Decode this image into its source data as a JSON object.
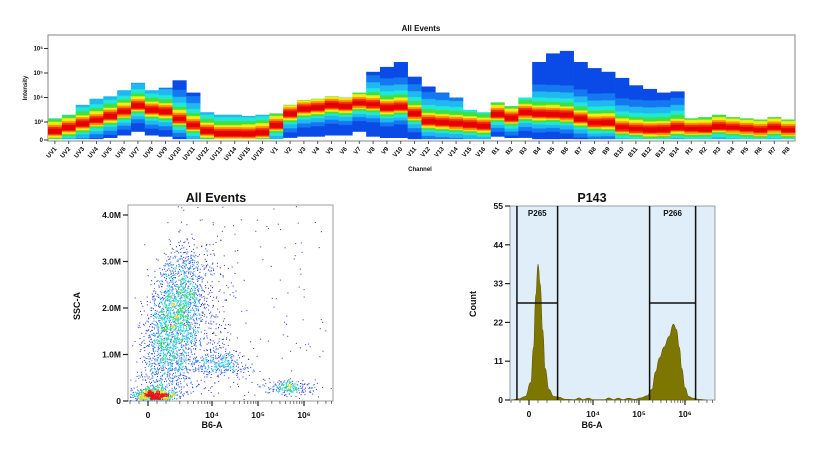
{
  "chart_data": [
    {
      "type": "heatmap",
      "title": "All Events",
      "xlabel": "Channel",
      "ylabel": "Intensity",
      "y_scale": "log",
      "y_ticks": [
        {
          "label": "0",
          "log10": 2.265
        },
        {
          "label": "10³",
          "log10": 3
        },
        {
          "label": "10⁴",
          "log10": 4
        },
        {
          "label": "10⁵",
          "log10": 5
        },
        {
          "label": "10⁶",
          "log10": 6
        }
      ],
      "value_units": "log10 intensity (top = max, peak = densest, bottom = min)",
      "channels": [
        {
          "name": "UV1",
          "top": 3.15,
          "peak": 2.6,
          "bottom": 2.3
        },
        {
          "name": "UV2",
          "top": 3.3,
          "peak": 2.75,
          "bottom": 2.3
        },
        {
          "name": "UV3",
          "top": 3.7,
          "peak": 2.9,
          "bottom": 2.3
        },
        {
          "name": "UV4",
          "top": 3.95,
          "peak": 3.05,
          "bottom": 2.3
        },
        {
          "name": "UV5",
          "top": 4.05,
          "peak": 3.2,
          "bottom": 2.35
        },
        {
          "name": "UV6",
          "top": 4.3,
          "peak": 3.4,
          "bottom": 2.45
        },
        {
          "name": "UV7",
          "top": 4.6,
          "peak": 3.65,
          "bottom": 2.6
        },
        {
          "name": "UV8",
          "top": 4.3,
          "peak": 3.45,
          "bottom": 2.45
        },
        {
          "name": "UV9",
          "top": 4.4,
          "peak": 3.4,
          "bottom": 2.4
        },
        {
          "name": "UV10",
          "top": 4.7,
          "peak": 3.1,
          "bottom": 2.3
        },
        {
          "name": "UV11",
          "top": 4.2,
          "peak": 2.85,
          "bottom": 2.3
        },
        {
          "name": "UV12",
          "top": 3.4,
          "peak": 2.6,
          "bottom": 2.3
        },
        {
          "name": "UV13",
          "top": 3.3,
          "peak": 2.5,
          "bottom": 2.3
        },
        {
          "name": "UV14",
          "top": 3.3,
          "peak": 2.5,
          "bottom": 2.3
        },
        {
          "name": "UV15",
          "top": 3.25,
          "peak": 2.5,
          "bottom": 2.3
        },
        {
          "name": "UV16",
          "top": 3.3,
          "peak": 2.55,
          "bottom": 2.3
        },
        {
          "name": "V1",
          "top": 3.35,
          "peak": 2.85,
          "bottom": 2.3
        },
        {
          "name": "V2",
          "top": 3.7,
          "peak": 3.3,
          "bottom": 2.35
        },
        {
          "name": "V3",
          "top": 3.9,
          "peak": 3.5,
          "bottom": 2.4
        },
        {
          "name": "V4",
          "top": 3.95,
          "peak": 3.55,
          "bottom": 2.4
        },
        {
          "name": "V5",
          "top": 4.05,
          "peak": 3.65,
          "bottom": 2.45
        },
        {
          "name": "V6",
          "top": 4.0,
          "peak": 3.6,
          "bottom": 2.45
        },
        {
          "name": "V7",
          "top": 4.2,
          "peak": 3.75,
          "bottom": 2.6
        },
        {
          "name": "V8",
          "top": 5.05,
          "peak": 3.7,
          "bottom": 2.4
        },
        {
          "name": "V9",
          "top": 5.25,
          "peak": 3.55,
          "bottom": 2.35
        },
        {
          "name": "V10",
          "top": 5.45,
          "peak": 3.6,
          "bottom": 2.35
        },
        {
          "name": "V11",
          "top": 4.85,
          "peak": 3.3,
          "bottom": 2.3
        },
        {
          "name": "V12",
          "top": 4.45,
          "peak": 3.0,
          "bottom": 2.3
        },
        {
          "name": "V13",
          "top": 4.2,
          "peak": 2.95,
          "bottom": 2.3
        },
        {
          "name": "V14",
          "top": 4.0,
          "peak": 2.9,
          "bottom": 2.3
        },
        {
          "name": "V15",
          "top": 3.5,
          "peak": 2.85,
          "bottom": 2.3
        },
        {
          "name": "V16",
          "top": 3.4,
          "peak": 2.8,
          "bottom": 2.3
        },
        {
          "name": "B1",
          "top": 3.8,
          "peak": 3.3,
          "bottom": 2.4
        },
        {
          "name": "B2",
          "top": 3.65,
          "peak": 3.15,
          "bottom": 2.35
        },
        {
          "name": "B3",
          "top": 4.0,
          "peak": 3.35,
          "bottom": 2.35
        },
        {
          "name": "B4",
          "top": 5.45,
          "peak": 3.3,
          "bottom": 2.3
        },
        {
          "name": "B5",
          "top": 5.8,
          "peak": 3.3,
          "bottom": 2.3
        },
        {
          "name": "B6",
          "top": 5.9,
          "peak": 3.25,
          "bottom": 2.3
        },
        {
          "name": "B7",
          "top": 5.45,
          "peak": 3.1,
          "bottom": 2.3
        },
        {
          "name": "B8",
          "top": 5.2,
          "peak": 2.95,
          "bottom": 2.3
        },
        {
          "name": "B9",
          "top": 5.05,
          "peak": 2.95,
          "bottom": 2.3
        },
        {
          "name": "B10",
          "top": 4.8,
          "peak": 2.75,
          "bottom": 2.3
        },
        {
          "name": "B11",
          "top": 4.5,
          "peak": 2.7,
          "bottom": 2.3
        },
        {
          "name": "B12",
          "top": 4.35,
          "peak": 2.65,
          "bottom": 2.3
        },
        {
          "name": "B13",
          "top": 4.2,
          "peak": 2.65,
          "bottom": 2.3
        },
        {
          "name": "B14",
          "top": 4.25,
          "peak": 2.75,
          "bottom": 2.3
        },
        {
          "name": "R1",
          "top": 3.15,
          "peak": 2.7,
          "bottom": 2.3
        },
        {
          "name": "R2",
          "top": 3.2,
          "peak": 2.7,
          "bottom": 2.3
        },
        {
          "name": "R3",
          "top": 3.3,
          "peak": 2.8,
          "bottom": 2.3
        },
        {
          "name": "R4",
          "top": 3.2,
          "peak": 2.75,
          "bottom": 2.3
        },
        {
          "name": "R5",
          "top": 3.15,
          "peak": 2.7,
          "bottom": 2.3
        },
        {
          "name": "R6",
          "top": 3.1,
          "peak": 2.65,
          "bottom": 2.3
        },
        {
          "name": "R7",
          "top": 3.2,
          "peak": 2.75,
          "bottom": 2.3
        },
        {
          "name": "R8",
          "top": 3.1,
          "peak": 2.65,
          "bottom": 2.3
        }
      ]
    },
    {
      "type": "scatter",
      "title": "All Events",
      "xlabel": "B6-A",
      "ylabel": "SSC-A",
      "x_scale": "biexponential",
      "x_ticks": [
        {
          "label": "0",
          "value": 0
        },
        {
          "label": "10⁴",
          "value": 10000
        },
        {
          "label": "10⁵",
          "value": 100000
        },
        {
          "label": "10⁶",
          "value": 1000000
        }
      ],
      "y_ticks": [
        {
          "label": "0",
          "value": 0
        },
        {
          "label": "1.0M",
          "value": 1000000
        },
        {
          "label": "2.0M",
          "value": 2000000
        },
        {
          "label": "3.0M",
          "value": 3000000
        },
        {
          "label": "4.0M",
          "value": 4000000
        }
      ],
      "ylim": [
        0,
        4200000
      ],
      "coloring": "density (blue → cyan → green → yellow → red)",
      "populations": [
        {
          "kind": "blob",
          "x": 300,
          "y": 120000,
          "x_spread_decades": 0.22,
          "y_spread": 80000,
          "n": 900
        },
        {
          "kind": "streak",
          "x_from": 700,
          "y_from": 300000,
          "x_to": 2600,
          "y_to": 3000000,
          "x_spread_decades": 0.28,
          "y_spread": 220000,
          "n": 2300
        },
        {
          "kind": "blob",
          "x": 15000,
          "y": 800000,
          "x_spread_decades": 0.32,
          "y_spread": 150000,
          "n": 330
        },
        {
          "kind": "blob",
          "x": 500000,
          "y": 300000,
          "x_spread_decades": 0.25,
          "y_spread": 80000,
          "n": 240
        },
        {
          "kind": "blob",
          "x": 4000,
          "y": 1800000,
          "x_spread_decades": 0.45,
          "y_spread": 900000,
          "n": 500
        },
        {
          "kind": "uniform",
          "x_from": 1000,
          "x_to": 3000000,
          "y_from": 0,
          "y_to": 4200000,
          "n": 150
        }
      ]
    },
    {
      "type": "area",
      "title": "P143",
      "xlabel": "B6-A",
      "ylabel": "Count",
      "x_scale": "biexponential",
      "ylim": [
        0,
        55
      ],
      "y_ticks": [
        0,
        11,
        22,
        33,
        44,
        55
      ],
      "x_ticks": [
        {
          "label": "0",
          "value": 0
        },
        {
          "label": "10⁴",
          "value": 10000
        },
        {
          "label": "10⁵",
          "value": 100000
        },
        {
          "label": "10⁶",
          "value": 1000000
        }
      ],
      "fill_color": "#7d7600",
      "background_color": "#dfeef9",
      "points": [
        [
          -1500,
          0
        ],
        [
          -600,
          0.3
        ],
        [
          -200,
          1
        ],
        [
          100,
          5
        ],
        [
          250,
          15
        ],
        [
          380,
          30
        ],
        [
          500,
          38.5
        ],
        [
          620,
          33
        ],
        [
          760,
          20
        ],
        [
          900,
          9
        ],
        [
          1100,
          3
        ],
        [
          1400,
          1
        ],
        [
          1800,
          0.8
        ],
        [
          2500,
          0.2
        ],
        [
          4000,
          0.1
        ],
        [
          5000,
          0.6
        ],
        [
          6000,
          0.1
        ],
        [
          8000,
          0.5
        ],
        [
          10000,
          0.1
        ],
        [
          18000,
          0.1
        ],
        [
          22000,
          0.6
        ],
        [
          28000,
          0.1
        ],
        [
          35000,
          0.5
        ],
        [
          45000,
          0.1
        ],
        [
          60000,
          0.5
        ],
        [
          80000,
          0.2
        ],
        [
          110000,
          0.6
        ],
        [
          150000,
          1.2
        ],
        [
          190000,
          3
        ],
        [
          230000,
          8
        ],
        [
          280000,
          12
        ],
        [
          350000,
          15
        ],
        [
          450000,
          18
        ],
        [
          560000,
          21.5
        ],
        [
          650000,
          20
        ],
        [
          750000,
          15
        ],
        [
          850000,
          9
        ],
        [
          1000000,
          3.5
        ],
        [
          1200000,
          1
        ],
        [
          1500000,
          0.5
        ],
        [
          2000000,
          0.2
        ],
        [
          3000000,
          0
        ]
      ],
      "gates": [
        {
          "name": "P265",
          "from": -670,
          "to": 1700,
          "level": 27.5
        },
        {
          "name": "P266",
          "from": 170000,
          "to": 1700000,
          "level": 27.5
        }
      ]
    }
  ]
}
